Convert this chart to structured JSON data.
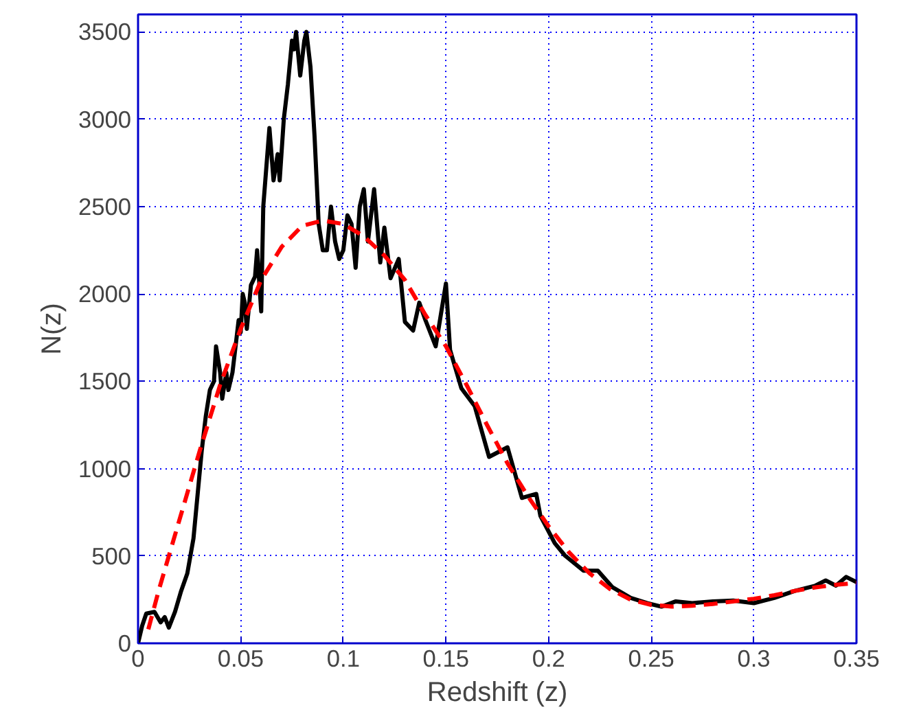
{
  "chart_data": {
    "type": "line",
    "xlabel": "Redshift (z)",
    "ylabel": "N(z)",
    "xlim": [
      0,
      0.35
    ],
    "ylim": [
      0,
      3600
    ],
    "xticks": [
      0,
      0.05,
      0.1,
      0.15,
      0.2,
      0.25,
      0.3,
      0.35
    ],
    "yticks": [
      0,
      500,
      1000,
      1500,
      2000,
      2500,
      3000,
      3500
    ],
    "grid": true,
    "series": [
      {
        "color": "#000000",
        "line_style": "solid",
        "x": [
          0,
          0.002,
          0.004,
          0.008,
          0.011,
          0.013,
          0.015,
          0.018,
          0.021,
          0.024,
          0.027,
          0.029,
          0.031,
          0.033,
          0.035,
          0.037,
          0.038,
          0.04,
          0.041,
          0.043,
          0.044,
          0.046,
          0.047,
          0.049,
          0.05,
          0.051,
          0.052,
          0.053,
          0.055,
          0.057,
          0.058,
          0.06,
          0.061,
          0.063,
          0.064,
          0.066,
          0.068,
          0.069,
          0.071,
          0.073,
          0.075,
          0.076,
          0.077,
          0.079,
          0.081,
          0.082,
          0.084,
          0.086,
          0.088,
          0.09,
          0.092,
          0.094,
          0.096,
          0.098,
          0.1,
          0.102,
          0.104,
          0.106,
          0.108,
          0.11,
          0.112,
          0.115,
          0.118,
          0.12,
          0.123,
          0.127,
          0.13,
          0.134,
          0.137,
          0.14,
          0.145,
          0.15,
          0.152,
          0.1575,
          0.164,
          0.171,
          0.18,
          0.187,
          0.194,
          0.196,
          0.203,
          0.208,
          0.217,
          0.224,
          0.231,
          0.24,
          0.248,
          0.255,
          0.262,
          0.27,
          0.28,
          0.29,
          0.3,
          0.31,
          0.32,
          0.33,
          0.335,
          0.34,
          0.345,
          0.35
        ],
        "values": [
          0,
          100,
          170,
          180,
          120,
          150,
          90,
          180,
          300,
          400,
          600,
          850,
          1100,
          1300,
          1450,
          1500,
          1700,
          1550,
          1400,
          1550,
          1450,
          1550,
          1650,
          1850,
          1780,
          2000,
          1950,
          1800,
          2050,
          2100,
          2250,
          1900,
          2500,
          2800,
          2950,
          2650,
          2800,
          2650,
          3000,
          3200,
          3450,
          3400,
          3500,
          3250,
          3450,
          3500,
          3300,
          2900,
          2400,
          2250,
          2250,
          2500,
          2300,
          2200,
          2250,
          2450,
          2400,
          2150,
          2500,
          2600,
          2300,
          2600,
          2180,
          2380,
          2090,
          2200,
          1840,
          1790,
          1950,
          1850,
          1700,
          2060,
          1680,
          1460,
          1358,
          1067,
          1122,
          832,
          855,
          730,
          573,
          502,
          416,
          416,
          322,
          260,
          230,
          210,
          240,
          230,
          240,
          245,
          230,
          260,
          300,
          330,
          360,
          330,
          380,
          350
        ]
      },
      {
        "color": "#ff0000",
        "line_style": "dashed",
        "x": [
          0.005,
          0.01,
          0.02,
          0.03,
          0.04,
          0.05,
          0.06,
          0.07,
          0.08,
          0.09,
          0.1,
          0.11,
          0.12,
          0.13,
          0.14,
          0.15,
          0.16,
          0.17,
          0.18,
          0.19,
          0.2,
          0.21,
          0.22,
          0.23,
          0.24,
          0.25,
          0.26,
          0.27,
          0.28,
          0.29,
          0.3,
          0.31,
          0.32,
          0.33,
          0.34,
          0.35
        ],
        "values": [
          80,
          300,
          700,
          1100,
          1480,
          1800,
          2080,
          2270,
          2390,
          2420,
          2400,
          2330,
          2220,
          2080,
          1880,
          1700,
          1480,
          1250,
          1030,
          840,
          670,
          520,
          400,
          310,
          250,
          220,
          210,
          215,
          225,
          240,
          255,
          275,
          300,
          320,
          335,
          345
        ]
      }
    ]
  }
}
